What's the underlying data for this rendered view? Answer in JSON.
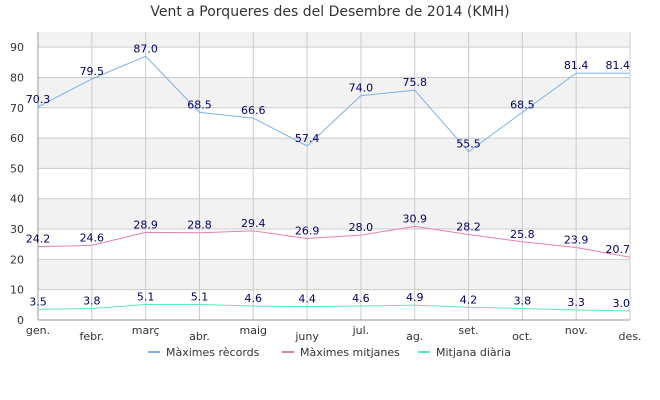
{
  "chart_data": {
    "type": "line",
    "title": "Vent a Porqueres des del Desembre de 2014 (KMH)",
    "xlabel": "",
    "ylabel": "",
    "ylim": [
      0,
      95
    ],
    "yticks": [
      0,
      10,
      20,
      30,
      40,
      50,
      60,
      70,
      80,
      90
    ],
    "grid": true,
    "legend_position": "bottom",
    "categories": [
      "gen.",
      "febr.",
      "març",
      "abr.",
      "maig",
      "juny",
      "jul.",
      "ag.",
      "set.",
      "oct.",
      "nov.",
      "des."
    ],
    "series": [
      {
        "name": "Màximes rècords",
        "color": "#7eb3e8",
        "values": [
          70.3,
          79.5,
          87.0,
          68.5,
          66.6,
          57.4,
          74.0,
          75.8,
          55.5,
          68.5,
          81.4,
          81.4
        ]
      },
      {
        "name": "Màximes mitjanes",
        "color": "#e87eb3",
        "values": [
          24.2,
          24.6,
          28.9,
          28.8,
          29.4,
          26.9,
          28.0,
          30.9,
          28.2,
          25.8,
          23.9,
          20.7
        ]
      },
      {
        "name": "Mitjana diària",
        "color": "#5ee8b3",
        "values": [
          3.5,
          3.8,
          5.1,
          5.1,
          4.6,
          4.4,
          4.6,
          4.9,
          4.2,
          3.8,
          3.3,
          3.0
        ]
      }
    ]
  }
}
